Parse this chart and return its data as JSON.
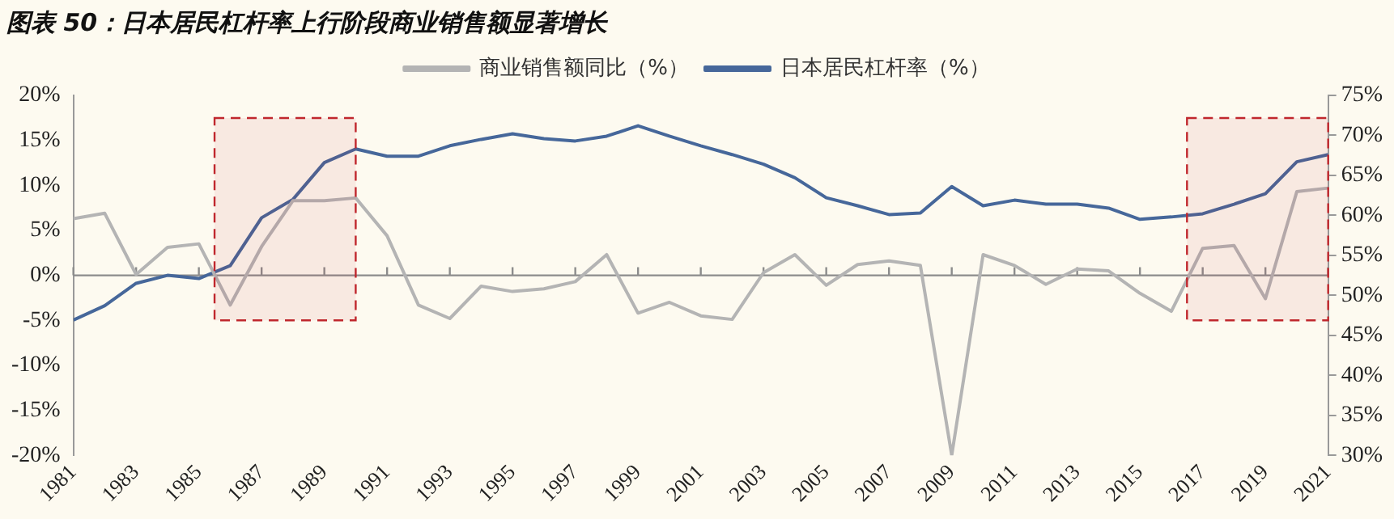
{
  "chart_data": {
    "type": "line",
    "title": "图表 50：日本居民杠杆率上行阶段商业销售额显著增长",
    "x": [
      1981,
      1982,
      1983,
      1984,
      1985,
      1986,
      1987,
      1988,
      1989,
      1990,
      1991,
      1992,
      1993,
      1994,
      1995,
      1996,
      1997,
      1998,
      1999,
      2000,
      2001,
      2002,
      2003,
      2004,
      2005,
      2006,
      2007,
      2008,
      2009,
      2010,
      2011,
      2012,
      2013,
      2014,
      2015,
      2016,
      2017,
      2018,
      2019,
      2020,
      2021
    ],
    "xlim": [
      1981,
      2021
    ],
    "xticks": [
      1981,
      1983,
      1985,
      1987,
      1989,
      1991,
      1993,
      1995,
      1997,
      1999,
      2001,
      2003,
      2005,
      2007,
      2009,
      2011,
      2013,
      2015,
      2017,
      2019,
      2021
    ],
    "ylim": [
      -20,
      20
    ],
    "yticks": [
      {
        "value": -20,
        "label": "-20%"
      },
      {
        "value": -15,
        "label": "-15%"
      },
      {
        "value": -10,
        "label": "-10%"
      },
      {
        "value": -5,
        "label": "-5%"
      },
      {
        "value": 0,
        "label": "0%"
      },
      {
        "value": 5,
        "label": "5%"
      },
      {
        "value": 10,
        "label": "10%"
      },
      {
        "value": 15,
        "label": "15%"
      },
      {
        "value": 20,
        "label": "20%"
      }
    ],
    "y2lim": [
      30,
      75
    ],
    "y2ticks": [
      {
        "value": 30,
        "label": "30%"
      },
      {
        "value": 35,
        "label": "35%"
      },
      {
        "value": 40,
        "label": "40%"
      },
      {
        "value": 45,
        "label": "45%"
      },
      {
        "value": 50,
        "label": "50%"
      },
      {
        "value": 55,
        "label": "55%"
      },
      {
        "value": 60,
        "label": "60%"
      },
      {
        "value": 65,
        "label": "65%"
      },
      {
        "value": 70,
        "label": "70%"
      },
      {
        "value": 75,
        "label": "75%"
      }
    ],
    "series": [
      {
        "name": "商业销售额同比（%）",
        "color": "#b4b4b4",
        "values": [
          6.3,
          6.9,
          0.1,
          3.1,
          3.5,
          -3.3,
          3.2,
          8.3,
          8.3,
          8.6,
          4.4,
          -3.3,
          -4.8,
          -1.2,
          -1.8,
          -1.5,
          -0.7,
          2.3,
          -4.2,
          -3.0,
          -4.5,
          -4.9,
          0.3,
          2.3,
          -1.1,
          1.2,
          1.6,
          1.1,
          -20,
          2.3,
          1.1,
          -1.0,
          0.7,
          0.5,
          -2.0,
          -4.0,
          3.0,
          3.3,
          -2.6,
          9.3,
          9.7
        ]
      },
      {
        "name": "日本居民杠杆率（%）",
        "color": "#46679a",
        "axis": "y2",
        "values": [
          46.9,
          48.7,
          51.5,
          52.5,
          52.1,
          53.7,
          59.7,
          62.0,
          66.6,
          68.3,
          67.4,
          67.4,
          68.7,
          69.5,
          70.2,
          69.6,
          69.3,
          69.9,
          71.2,
          69.9,
          68.7,
          67.6,
          66.4,
          64.7,
          62.2,
          61.2,
          60.1,
          60.3,
          63.6,
          61.2,
          61.9,
          61.4,
          61.4,
          60.9,
          59.5,
          59.8,
          60.2,
          61.4,
          62.7,
          66.7,
          67.6
        ]
      }
    ],
    "ref_lines": [
      {
        "axis": "y",
        "value": 0,
        "color": "#8c8c8c"
      }
    ],
    "bands": [
      {
        "axis": "x",
        "from": 1985.5,
        "to": 1990,
        "color": "#c0272d"
      },
      {
        "axis": "x",
        "from": 2016.5,
        "to": 2021,
        "color": "#c0272d"
      }
    ],
    "legend": "top",
    "grid": false,
    "marker": "none",
    "line_style": "solid"
  }
}
